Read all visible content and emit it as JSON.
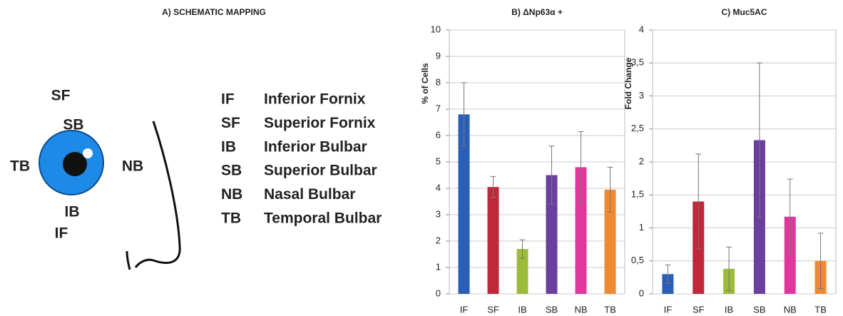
{
  "schematic": {
    "title": "A) SCHEMATIC MAPPING",
    "eye_labels": [
      "SF",
      "SB",
      "TB",
      "NB",
      "IB",
      "IF"
    ],
    "legend": [
      [
        "IF",
        "Inferior Fornix"
      ],
      [
        "SF",
        "Superior Fornix"
      ],
      [
        "IB",
        "Inferior Bulbar"
      ],
      [
        "SB",
        "Superior Bulbar"
      ],
      [
        "NB",
        "Nasal Bulbar"
      ],
      [
        "TB",
        "Temporal Bulbar"
      ]
    ]
  },
  "chart_data": [
    {
      "type": "bar",
      "title": "B) ΔNp63α +",
      "y_label": "% of Cells",
      "categories": [
        "IF",
        "SF",
        "IB",
        "SB",
        "NB",
        "TB"
      ],
      "values": [
        6.8,
        4.05,
        1.7,
        4.5,
        4.8,
        3.95
      ],
      "errors": [
        1.2,
        0.4,
        0.35,
        1.1,
        1.35,
        0.85
      ],
      "colors": [
        "#2a5fb8",
        "#c0283a",
        "#9dbb3a",
        "#6a3fa0",
        "#e0389a",
        "#f08a30"
      ],
      "ylim": [
        0,
        10
      ],
      "yticks": [
        0,
        1,
        2,
        3,
        4,
        5,
        6,
        7,
        8,
        9,
        10
      ],
      "grid": true
    },
    {
      "type": "bar",
      "title": "C) Muc5AC",
      "y_label": "Fold Change",
      "categories": [
        "IF",
        "SF",
        "IB",
        "SB",
        "NB",
        "TB"
      ],
      "values": [
        0.3,
        1.4,
        0.38,
        2.33,
        1.17,
        0.5
      ],
      "errors": [
        0.14,
        0.72,
        0.33,
        1.17,
        0.57,
        0.42
      ],
      "colors": [
        "#2a5fb8",
        "#c0283a",
        "#9dbb3a",
        "#6a3fa0",
        "#e0389a",
        "#f08a30"
      ],
      "ylim": [
        0,
        4
      ],
      "yticks": [
        0,
        {
          "value": 0.5,
          "label": "0,5"
        },
        1,
        {
          "value": 1.5,
          "label": "1,5"
        },
        2,
        {
          "value": 2.5,
          "label": "2,5"
        },
        3,
        {
          "value": 3.5,
          "label": "3,5"
        },
        4
      ],
      "grid": true
    }
  ]
}
